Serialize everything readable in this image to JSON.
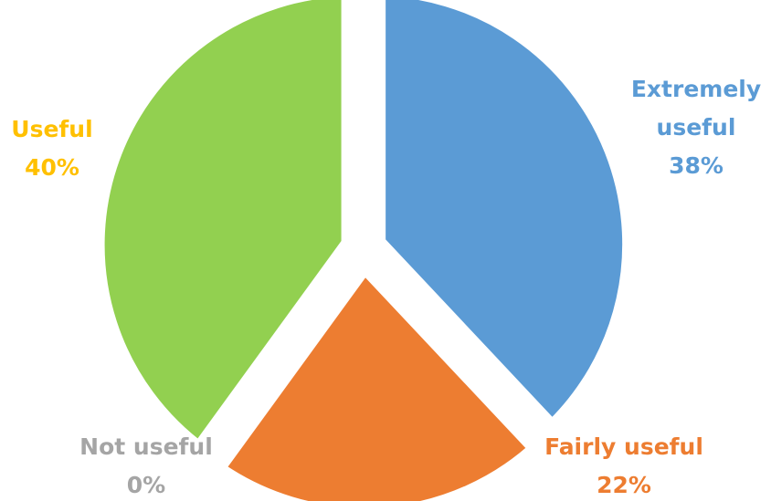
{
  "chart_data": {
    "type": "pie",
    "title": "",
    "slices": [
      {
        "label": "Extremely useful",
        "label_lines": [
          "Extremely",
          "useful"
        ],
        "value": 38,
        "value_label": "38%",
        "color": "#5B9BD5"
      },
      {
        "label": "Fairly useful",
        "label_lines": [
          "Fairly useful"
        ],
        "value": 22,
        "value_label": "22%",
        "color": "#ED7D31"
      },
      {
        "label": "Not useful",
        "label_lines": [
          "Not useful"
        ],
        "value": 0,
        "value_label": "0%",
        "color": "#A5A5A5"
      },
      {
        "label": "Useful",
        "label_lines": [
          "Useful"
        ],
        "value": 40,
        "value_label": "40%",
        "color": "#FFC000",
        "fill": "#92D050"
      }
    ],
    "exploded": true,
    "legend": "none"
  }
}
